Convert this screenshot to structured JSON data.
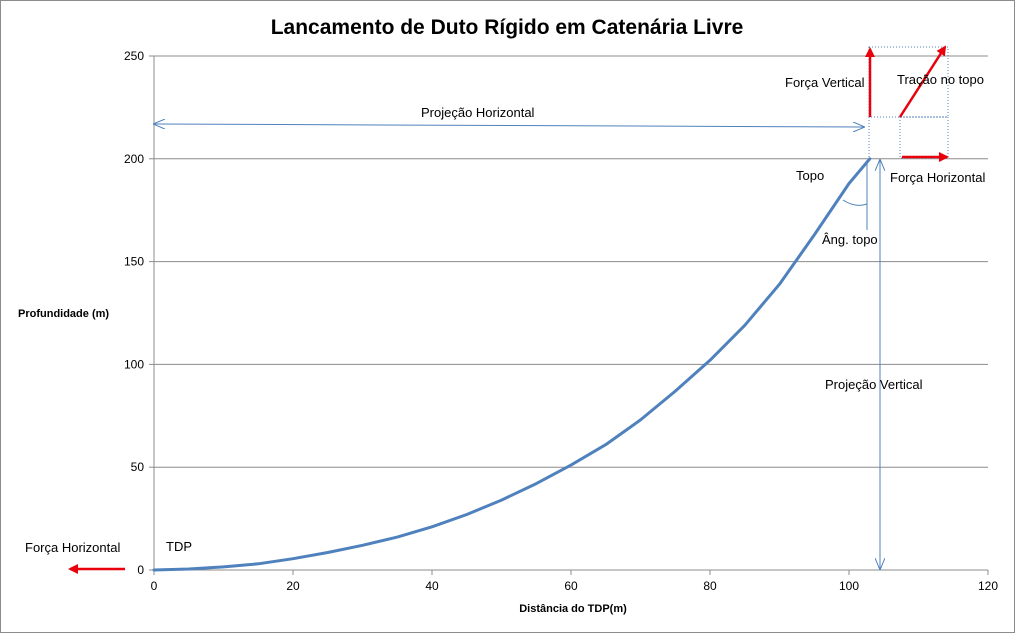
{
  "chart_data": {
    "type": "line",
    "title": "Lancamento de Duto Rígido em Catenária Livre",
    "xlabel": "Distância  do TDP(m)",
    "ylabel": "Profundidade  (m)",
    "xlim": [
      0,
      120
    ],
    "ylim": [
      0,
      250
    ],
    "x_ticks": [
      0,
      20,
      40,
      60,
      80,
      100,
      120
    ],
    "y_ticks": [
      0,
      50,
      100,
      150,
      200,
      250
    ],
    "x_tick_labels": [
      "0",
      "20",
      "40",
      "60",
      "80",
      "100",
      "120"
    ],
    "y_tick_labels": [
      "0",
      "50",
      "100",
      "150",
      "200",
      "250"
    ],
    "grid": "horizontal",
    "series": [
      {
        "color": "#4f81bd",
        "x": [
          0,
          5,
          10,
          15,
          20,
          25,
          30,
          35,
          40,
          45,
          50,
          55,
          60,
          65,
          70,
          75,
          80,
          85,
          90,
          95,
          100,
          103
        ],
        "y": [
          0,
          0.5,
          1.5,
          3,
          5.5,
          8.5,
          12,
          16,
          21,
          27,
          34,
          42,
          51,
          61,
          73,
          87,
          102,
          119,
          139,
          163,
          188,
          200
        ]
      }
    ],
    "annotations": {
      "force_vertical": "Força Vertical",
      "tension_top": "Tração  no topo",
      "horizontal_projection": "Projeção Horizontal",
      "top": "Topo",
      "horizontal_force_top": "Força Horizontal",
      "top_angle": "Âng. topo",
      "vertical_projection": "Projeção Vertical",
      "horizontal_force_tdp": "Força Horizontal",
      "tdp": "TDP"
    },
    "colors": {
      "force_arrows": "#e8000b",
      "dimension_lines": "#4f81bd",
      "grid": "#8c8c8c"
    }
  }
}
